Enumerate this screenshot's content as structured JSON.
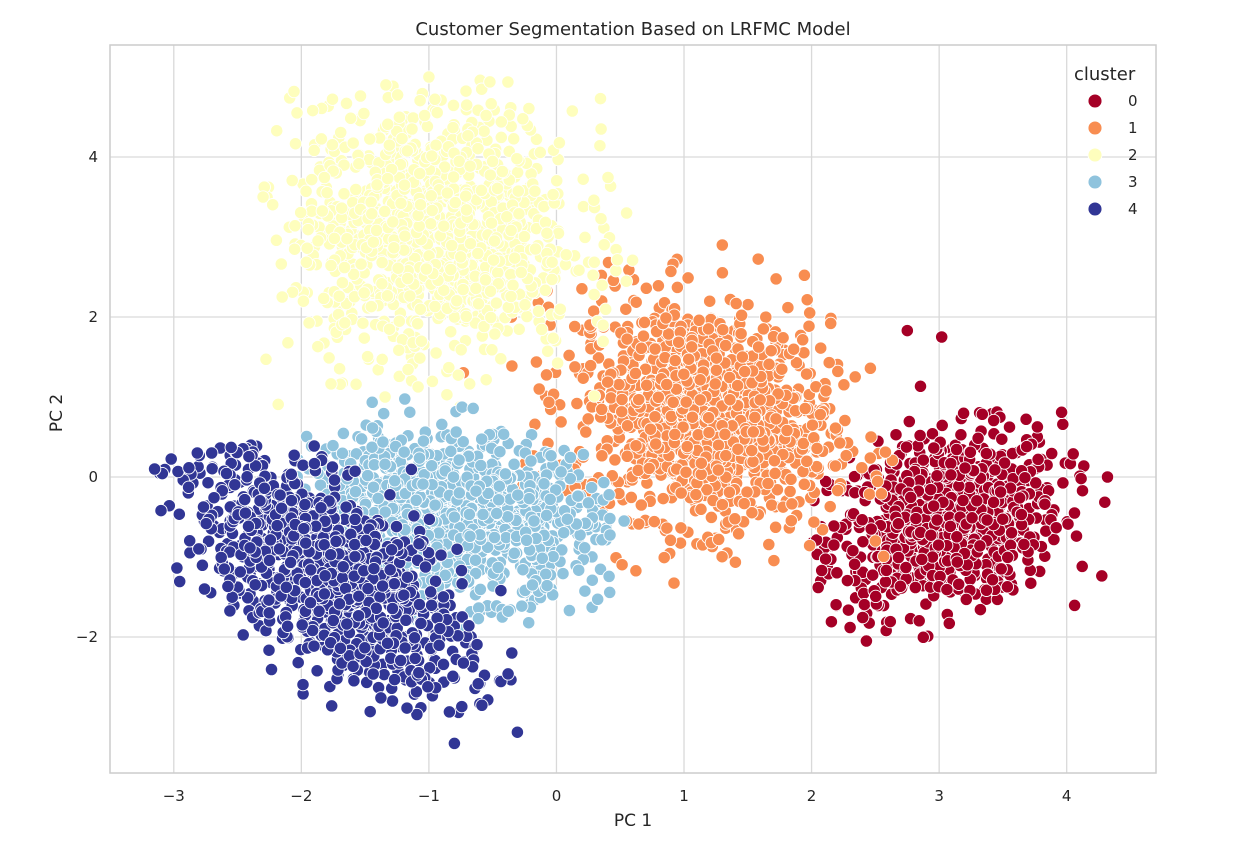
{
  "chart_data": {
    "type": "scatter",
    "title": "Customer Segmentation Based on LRFMC Model",
    "xlabel": "PC 1",
    "ylabel": "PC 2",
    "xlim": [
      -3.5,
      4.7
    ],
    "ylim": [
      -3.7,
      5.4
    ],
    "xticks": [
      -3,
      -2,
      -1,
      0,
      1,
      2,
      3,
      4
    ],
    "xtick_labels": [
      "−3",
      "−2",
      "−1",
      "0",
      "1",
      "2",
      "3",
      "4"
    ],
    "yticks": [
      -2,
      0,
      2,
      4
    ],
    "ytick_labels": [
      "−2",
      "0",
      "2",
      "4"
    ],
    "grid": true,
    "legend": {
      "title": "cluster",
      "position": "top-right"
    },
    "series": [
      {
        "name": "0",
        "color": "#a50026",
        "cluster": {
          "cx": 3.05,
          "cy": -0.55,
          "sx": 0.45,
          "sy": 0.55,
          "rho": 0.25,
          "n": 900,
          "min": [
            2.0,
            -2.05
          ],
          "max": [
            4.35,
            1.85
          ]
        },
        "outliers": [
          [
            2.43,
            -2.05
          ],
          [
            4.32,
            0.0
          ],
          [
            2.75,
            1.83
          ],
          [
            3.02,
            1.75
          ],
          [
            2.15,
            1.92
          ]
        ]
      },
      {
        "name": "1",
        "color": "#f88d51",
        "cluster": {
          "cx": 1.15,
          "cy": 0.8,
          "sx": 0.5,
          "sy": 0.7,
          "rho": -0.15,
          "n": 1200,
          "min": 0,
          "max": [
            2.85,
            2.9
          ]
        },
        "outliers": [
          [
            -0.05,
            1.9
          ],
          [
            1.3,
            2.9
          ],
          [
            2.5,
            -0.8
          ],
          [
            2.15,
            1.92
          ],
          [
            0.55,
            -0.55
          ]
        ]
      },
      {
        "name": "2",
        "color": "#fefebd",
        "cluster": {
          "cx": -0.95,
          "cy": 3.05,
          "sx": 0.55,
          "sy": 0.8,
          "rho": 0.0,
          "n": 1200,
          "min": [
            -2.3,
            0.7
          ],
          "max": [
            0.6,
            5.0
          ]
        },
        "outliers": [
          [
            -1.0,
            5.0
          ],
          [
            -2.3,
            3.5
          ],
          [
            -2.15,
            2.25
          ],
          [
            0.35,
            4.35
          ],
          [
            0.55,
            3.3
          ]
        ]
      },
      {
        "name": "3",
        "color": "#8fc3dd",
        "cluster": {
          "cx": -0.85,
          "cy": -0.45,
          "sx": 0.6,
          "sy": 0.5,
          "rho": -0.2,
          "n": 1100,
          "min": [
            -2.05,
            -1.95
          ],
          "max": [
            0.45,
            1.0
          ]
        },
        "outliers": [
          [
            0.53,
            -0.55
          ],
          [
            -0.2,
            0.2
          ]
        ]
      },
      {
        "name": "4",
        "color": "#313695",
        "cluster": {
          "cx": -1.8,
          "cy": -1.2,
          "sx": 0.55,
          "sy": 0.75,
          "rho": -0.65,
          "n": 1100,
          "min": [
            -3.2,
            -3.35
          ],
          "max": [
            -0.3,
            0.4
          ]
        },
        "outliers": [
          [
            -3.15,
            0.1
          ],
          [
            -2.55,
            0.37
          ],
          [
            -0.8,
            -3.33
          ],
          [
            -0.35,
            -2.2
          ]
        ]
      }
    ]
  }
}
